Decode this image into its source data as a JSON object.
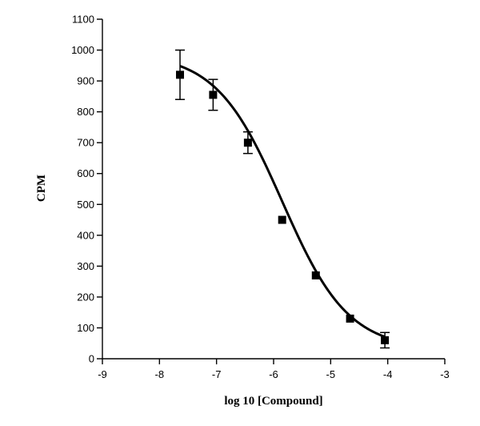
{
  "chart_data": {
    "type": "scatter",
    "title": "",
    "xlabel": "log 10 [Compound]",
    "ylabel": "CPM",
    "xlim": [
      -9,
      -3
    ],
    "ylim": [
      0,
      1100
    ],
    "x_ticks": [
      -9,
      -8,
      -7,
      -6,
      -5,
      -4,
      -3
    ],
    "y_ticks": [
      0,
      100,
      200,
      300,
      400,
      500,
      600,
      700,
      800,
      900,
      1000,
      1100
    ],
    "grid": false,
    "legend": "none",
    "marker": "square",
    "series": [
      {
        "x": [
          -7.64,
          -7.06,
          -6.45,
          -5.85,
          -5.26,
          -4.66,
          -4.05
        ],
        "y": [
          920,
          855,
          700,
          450,
          270,
          130,
          60
        ],
        "error": [
          80,
          50,
          35,
          0,
          0,
          0,
          25
        ]
      }
    ],
    "fit_curve": {
      "model": "sigmoidal dose-response",
      "top": 990,
      "bottom": 30,
      "log_ec50": -5.85,
      "hill_slope": -0.75
    }
  }
}
